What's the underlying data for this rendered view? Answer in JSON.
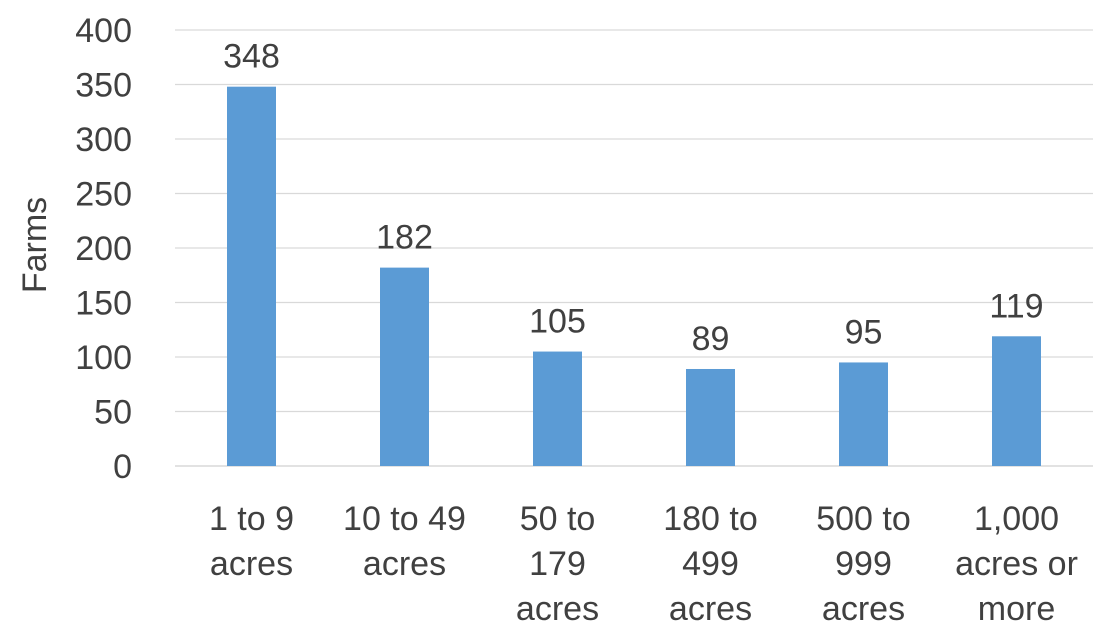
{
  "chart_data": {
    "type": "bar",
    "title": "",
    "xlabel": "",
    "ylabel": "Farms",
    "ylim": [
      0,
      400
    ],
    "yticks": [
      0,
      50,
      100,
      150,
      200,
      250,
      300,
      350,
      400
    ],
    "grid": true,
    "legend": "none",
    "bar_color": "#5b9bd5",
    "categories": [
      [
        "1 to 9",
        "acres"
      ],
      [
        "10 to 49",
        "acres"
      ],
      [
        "50 to",
        "179",
        "acres"
      ],
      [
        "180 to",
        "499",
        "acres"
      ],
      [
        "500 to",
        "999",
        "acres"
      ],
      [
        "1,000",
        "acres or",
        "more"
      ]
    ],
    "values": [
      348,
      182,
      105,
      89,
      95,
      119
    ]
  }
}
